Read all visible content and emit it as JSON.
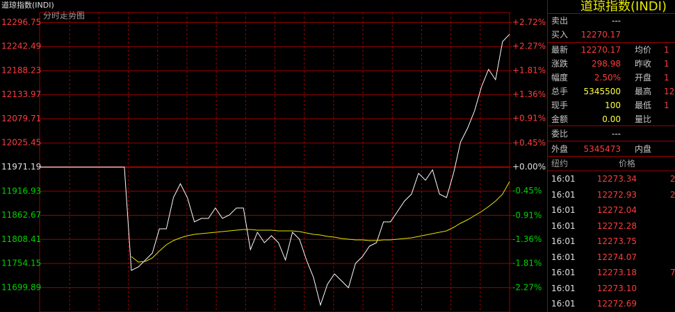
{
  "header": {
    "title": "道琼指数(INDI)",
    "subtitle": "分时走势图"
  },
  "chart_data": {
    "type": "line",
    "ylim": [
      11644.96,
      12319.27
    ],
    "yticks": [
      12296.75,
      12242.49,
      12188.23,
      12133.97,
      12079.71,
      12025.45,
      11971.19,
      11916.93,
      11862.67,
      11808.41,
      11754.15,
      11699.89
    ],
    "y2lim": [
      -2.725,
      2.908
    ],
    "y2ticks": [
      {
        "value": 2.72,
        "label": "+2.72%"
      },
      {
        "value": 2.27,
        "label": "+2.27%"
      },
      {
        "value": 1.81,
        "label": "+1.81%"
      },
      {
        "value": 1.36,
        "label": "+1.36%"
      },
      {
        "value": 0.91,
        "label": "+0.91%"
      },
      {
        "value": 0.45,
        "label": "+0.45%"
      },
      {
        "value": 0,
        "label": "+0.00%"
      },
      {
        "value": -0.45,
        "label": "-0.45%"
      },
      {
        "value": -0.91,
        "label": "-0.91%"
      },
      {
        "value": -1.36,
        "label": "-1.36%"
      },
      {
        "value": -1.81,
        "label": "-1.81%"
      },
      {
        "value": -2.27,
        "label": "-2.27%"
      }
    ],
    "grid": true,
    "series": [
      {
        "color": "#ffffff",
        "values": [
          11971.19,
          11971.19,
          11971.19,
          11971.19,
          11971.19,
          11971.19,
          11971.19,
          11971.19,
          11971.19,
          11971.19,
          11971.19,
          11971.19,
          11971.19,
          11738.62,
          11746.42,
          11762.03,
          11777.64,
          11832.27,
          11832.27,
          11902.51,
          11933.73,
          11902.51,
          11847.88,
          11855.68,
          11855.68,
          11879.1,
          11855.68,
          11863.49,
          11879.1,
          11879.1,
          11785.44,
          11824.47,
          11801.05,
          11816.66,
          11801.05,
          11762.03,
          11824.47,
          11808.86,
          11762.03,
          11723.01,
          11660.57,
          11707.4,
          11730.81,
          11715.2,
          11699.59,
          11754.22,
          11769.83,
          11793.25,
          11801.05,
          11847.88,
          11847.88,
          11871.29,
          11894.71,
          11910.31,
          11957.14,
          11941.53,
          11964.95,
          11910.31,
          11902.51,
          11957.14,
          12027.38,
          12058.6,
          12097.62,
          12152.25,
          12191.28,
          12167.86,
          12253.71,
          12270.17
        ]
      },
      {
        "color": "#e8e800",
        "values": [
          null,
          null,
          null,
          null,
          null,
          null,
          null,
          null,
          null,
          null,
          null,
          null,
          null,
          11769.83,
          11757.35,
          11758.91,
          11766.71,
          11782.32,
          11796.37,
          11805.73,
          11811.98,
          11816.66,
          11819.78,
          11821.34,
          11822.9,
          11824.47,
          11826.03,
          11827.59,
          11829.15,
          11830.71,
          11830.71,
          11829.15,
          11829.15,
          11829.15,
          11827.59,
          11827.59,
          11827.59,
          11826.03,
          11822.9,
          11819.78,
          11818.22,
          11815.1,
          11813.54,
          11810.42,
          11808.86,
          11807.3,
          11807.3,
          11805.73,
          11805.73,
          11807.3,
          11807.3,
          11808.86,
          11810.42,
          11811.98,
          11815.1,
          11818.22,
          11821.34,
          11824.47,
          11827.59,
          11835.39,
          11844.76,
          11852.56,
          11861.93,
          11871.29,
          11882.22,
          11894.71,
          11910.31,
          11938.41
        ]
      }
    ]
  },
  "panel": {
    "title": "道琼指数(INDI)",
    "rows": [
      [
        "卖出",
        "---"
      ],
      [
        "买入",
        "12270.17"
      ],
      [
        "最新",
        "12270.17",
        "均价",
        "1"
      ],
      [
        "涨跌",
        "298.98",
        "昨收",
        "1"
      ],
      [
        "幅度",
        "2.50%",
        "开盘",
        "1"
      ],
      [
        "总手",
        "5345500",
        "最高",
        "12"
      ],
      [
        "现手",
        "100",
        "最低",
        "1"
      ],
      [
        "金额",
        "0.00",
        "量比"
      ],
      [
        "委比",
        "---"
      ],
      [
        "外盘",
        "5345473",
        "内盘"
      ]
    ],
    "trade_header": [
      "纽约",
      "价格"
    ],
    "trades": [
      [
        "16:01",
        "12273.34",
        "2"
      ],
      [
        "16:01",
        "12272.93",
        "2"
      ],
      [
        "16:01",
        "12272.04"
      ],
      [
        "16:01",
        "12272.28"
      ],
      [
        "16:01",
        "12273.75"
      ],
      [
        "16:01",
        "12274.07"
      ],
      [
        "16:01",
        "12273.18",
        "7"
      ],
      [
        "16:01",
        "12273.10"
      ],
      [
        "16:01",
        "12272.69"
      ]
    ]
  }
}
